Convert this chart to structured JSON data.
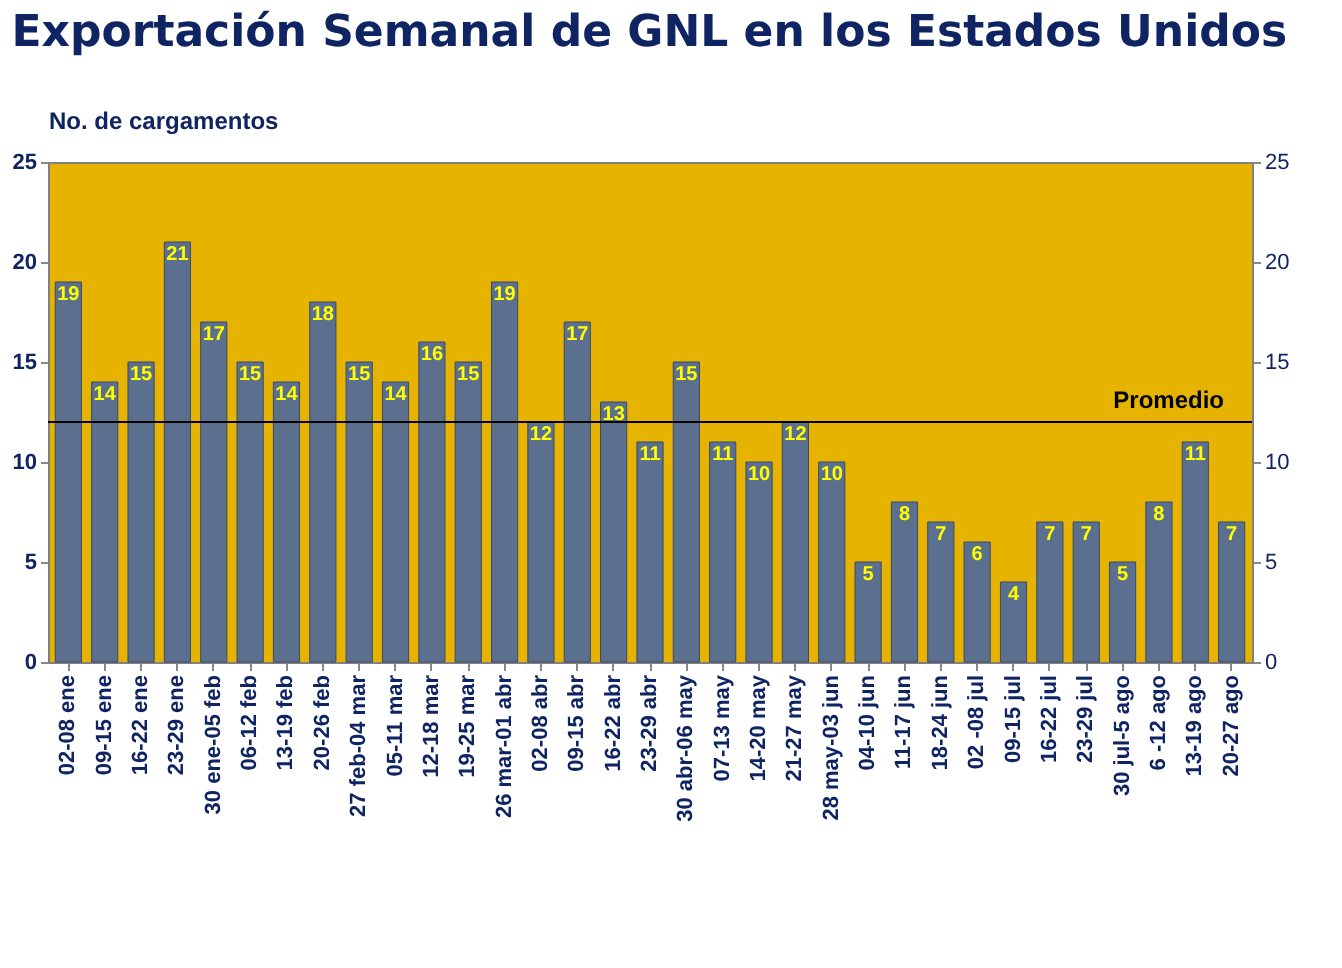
{
  "chart_data": {
    "type": "bar",
    "title": "Exportación Semanal de GNL en los Estados Unidos",
    "ylabel": "No. de cargamentos",
    "categories": [
      "02-08 ene",
      "09-15 ene",
      "16-22 ene",
      "23-29 ene",
      "30 ene-05 feb",
      "06-12 feb",
      "13-19 feb",
      "20-26 feb",
      "27 feb-04 mar",
      "05-11 mar",
      "12-18 mar",
      "19-25 mar",
      "26 mar-01 abr",
      "02-08 abr",
      "09-15 abr",
      "16-22 abr",
      "23-29 abr",
      "30 abr-06 may",
      "07-13 may",
      "14-20 may",
      "21-27 may",
      "28 may-03 jun",
      "04-10 jun",
      "11-17 jun",
      "18-24 jun",
      "02 -08 jul",
      "09-15 jul",
      "16-22 jul",
      "23-29 jul",
      "30 jul-5 ago",
      "6 -12 ago",
      "13-19 ago",
      "20-27 ago"
    ],
    "values": [
      19,
      14,
      15,
      21,
      17,
      15,
      14,
      18,
      15,
      14,
      16,
      15,
      19,
      12,
      17,
      13,
      11,
      15,
      11,
      10,
      12,
      10,
      5,
      8,
      7,
      6,
      4,
      7,
      7,
      5,
      8,
      11,
      7
    ],
    "color": "#5b6f8f",
    "data_labels": true,
    "grid": false,
    "ylim": [
      0,
      25
    ],
    "yticks": [
      0,
      5,
      10,
      15,
      20,
      25
    ],
    "y2lim": [
      0,
      25
    ],
    "y2ticks": [
      0,
      5,
      10,
      15,
      20,
      25
    ],
    "ref_lines": [
      {
        "axis": "y",
        "value": 12,
        "label": "Promedio",
        "color": "#000000"
      }
    ]
  }
}
